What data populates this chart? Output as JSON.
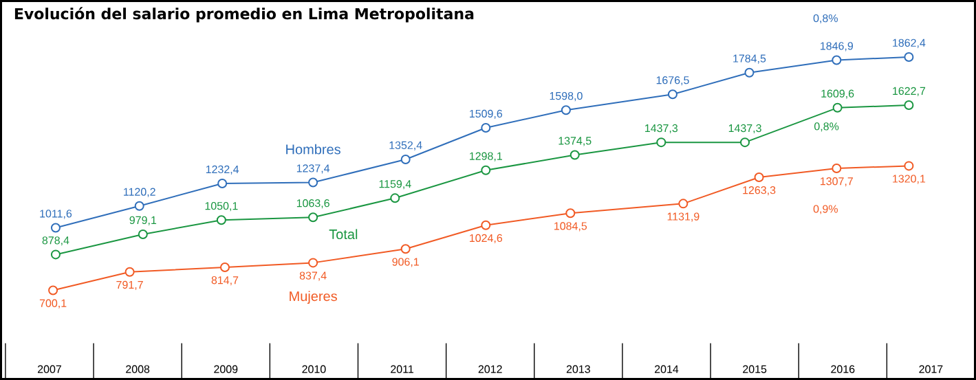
{
  "chart_data": {
    "type": "line",
    "title": "Evolución del salario promedio en Lima Metropolitana",
    "xlim": [
      2006.45,
      2017.5
    ],
    "xticks": [
      2007,
      2008,
      2009,
      2010,
      2011,
      2012,
      2013,
      2014,
      2015,
      2016,
      2017
    ],
    "tick_labels": "x",
    "marker": "circle",
    "line_style": "solid",
    "series": [
      {
        "name": "Hombres",
        "color": "#2f6eba",
        "x": [
          2007.07,
          2008.02,
          2008.96,
          2009.99,
          2011.04,
          2011.95,
          2012.86,
          2014.07,
          2014.94,
          2015.93,
          2016.75
        ],
        "values": [
          1011.6,
          1120.2,
          1232.4,
          1237.4,
          1352.4,
          1509.6,
          1598.0,
          1676.5,
          1784.5,
          1846.9,
          1862.4
        ],
        "value_labels": [
          "1011,6",
          "1120,2",
          "1232,4",
          "1237,4",
          "1352,4",
          "1509,6",
          "1598,0",
          "1676,5",
          "1784,5",
          "1846,9",
          "1862,4"
        ]
      },
      {
        "name": "Total",
        "color": "#1a9641",
        "x": [
          2007.07,
          2008.06,
          2008.95,
          2009.99,
          2010.92,
          2011.95,
          2012.96,
          2013.94,
          2014.89,
          2015.94,
          2016.75
        ],
        "values": [
          878.4,
          979.1,
          1050.1,
          1063.6,
          1159.4,
          1298.1,
          1374.5,
          1437.3,
          1437.3,
          1609.6,
          1622.7
        ],
        "value_labels": [
          "878,4",
          "979,1",
          "1050,1",
          "1063,6",
          "1159,4",
          "1298,1",
          "1374,5",
          "1437,3",
          "1437,3",
          "1609,6",
          "1622,7"
        ]
      },
      {
        "name": "Mujeres",
        "color": "#f15a24",
        "x": [
          2007.04,
          2007.91,
          2008.99,
          2009.99,
          2011.04,
          2011.95,
          2012.91,
          2014.19,
          2015.05,
          2015.93,
          2016.75
        ],
        "values": [
          700.1,
          791.7,
          814.7,
          837.4,
          906.1,
          1024.6,
          1084.5,
          1131.9,
          1263.3,
          1307.7,
          1320.1
        ],
        "value_labels": [
          "700,1",
          "791,7",
          "814,7",
          "837,4",
          "906,1",
          "1024,6",
          "1084,5",
          "1131,9",
          "1263,3",
          "1307,7",
          "1320,1"
        ]
      }
    ],
    "annotations": [
      "0,8%",
      "0,8%",
      "0,9%"
    ]
  }
}
